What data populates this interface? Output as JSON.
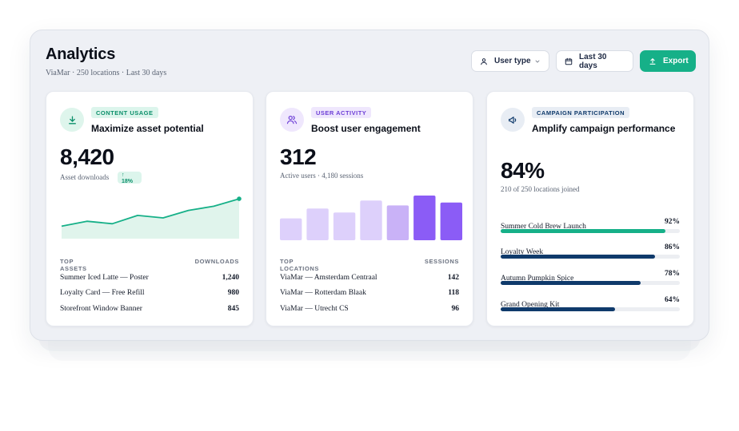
{
  "header": {
    "title": "Analytics",
    "subtitle": "ViaMar · 250 locations · Last 30 days",
    "filter_user_type": "User type",
    "filter_date": "Last 30 days",
    "export_label": "Export"
  },
  "colors": {
    "accent_green": "#16b088",
    "accent_purple": "#8b5cf6",
    "navy": "#0f3a6b"
  },
  "cards": [
    {
      "tag": "CONTENT USAGE",
      "title": "Maximize asset potential",
      "metric": "8,420",
      "caption": "Asset downloads",
      "delta": "18%",
      "table_header_left": "TOP ASSETS",
      "table_header_right": "DOWNLOADS",
      "rows": [
        {
          "name": "Summer Iced Latte — Poster",
          "value": "1,240"
        },
        {
          "name": "Loyalty Card — Free Refill",
          "value": "980"
        },
        {
          "name": "Storefront Window Banner",
          "value": "845"
        }
      ],
      "icon": "download-icon"
    },
    {
      "tag": "USER ACTIVITY",
      "title": "Boost user engagement",
      "metric": "312",
      "caption": "Active users · 4,180 sessions",
      "table_header_left": "TOP LOCATIONS",
      "table_header_right": "SESSIONS",
      "rows": [
        {
          "name": "ViaMar — Amsterdam Centraal",
          "value": "142"
        },
        {
          "name": "ViaMar — Rotterdam Blaak",
          "value": "118"
        },
        {
          "name": "ViaMar — Utrecht CS",
          "value": "96"
        }
      ],
      "icon": "users-icon"
    },
    {
      "tag": "CAMPAIGN PARTICIPATION",
      "title": "Amplify campaign performance",
      "metric": "84%",
      "caption": "210 of 250 locations joined",
      "campaigns": [
        {
          "name": "Summer Cold Brew Launch",
          "percent_label": "92%",
          "value": 0.92,
          "color": "#16b088"
        },
        {
          "name": "Loyalty Week",
          "percent_label": "86%",
          "value": 0.86,
          "color": "#0f3a6b"
        },
        {
          "name": "Autumn Pumpkin Spice",
          "percent_label": "78%",
          "value": 0.78,
          "color": "#0f3a6b"
        },
        {
          "name": "Grand Opening Kit",
          "percent_label": "64%",
          "value": 0.64,
          "color": "#0f3a6b"
        }
      ],
      "icon": "megaphone-icon"
    }
  ],
  "chart_data": [
    {
      "type": "area",
      "x": [
        1,
        2,
        3,
        4,
        5,
        6,
        7,
        8
      ],
      "values": [
        15,
        21,
        18,
        28,
        25,
        34,
        39,
        48
      ],
      "ylim": [
        0,
        50
      ],
      "grid": false,
      "color": "#16b088"
    },
    {
      "type": "bar",
      "values": [
        22,
        32,
        28,
        40,
        35,
        45,
        38
      ],
      "ylim": [
        0,
        45
      ],
      "grid": false,
      "colors": [
        "#ddd0fb",
        "#ddd0fb",
        "#ddd0fb",
        "#ddd0fb",
        "#c9b2f7",
        "#8b5cf6",
        "#8b5cf6"
      ]
    }
  ]
}
